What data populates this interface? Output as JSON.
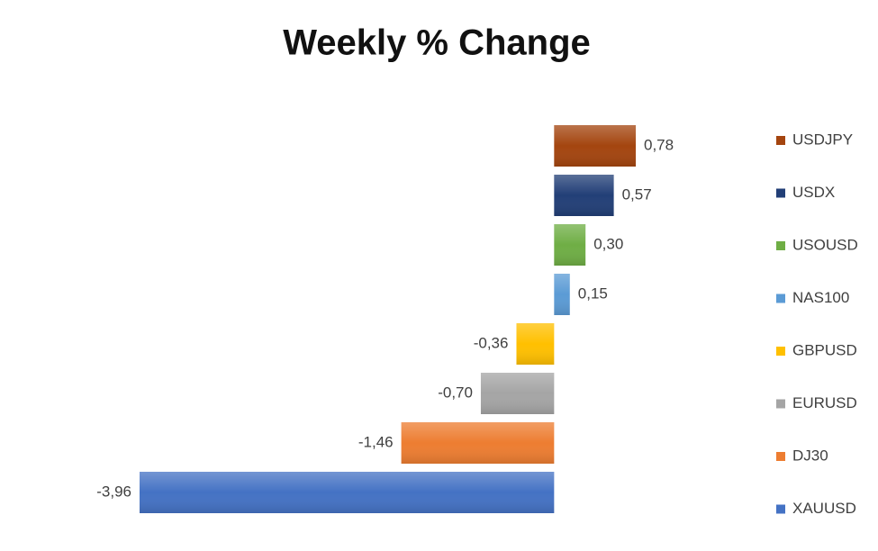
{
  "chart_data": {
    "type": "bar",
    "orientation": "horizontal",
    "title": "Weekly % Change",
    "series": [
      {
        "name": "USDJPY",
        "color": "#a4450f",
        "values": [
          0.78
        ],
        "value_labels": [
          "0,78"
        ]
      },
      {
        "name": "USDX",
        "color": "#223f77",
        "values": [
          0.57
        ],
        "value_labels": [
          "0,57"
        ]
      },
      {
        "name": "USOUSD",
        "color": "#6fae45",
        "values": [
          0.3
        ],
        "value_labels": [
          "0,30"
        ]
      },
      {
        "name": "NAS100",
        "color": "#5b9bd5",
        "values": [
          0.15
        ],
        "value_labels": [
          "0,15"
        ]
      },
      {
        "name": "GBPUSD",
        "color": "#ffc000",
        "values": [
          -0.36
        ],
        "value_labels": [
          "-0,36"
        ]
      },
      {
        "name": "EURUSD",
        "color": "#a5a5a5",
        "values": [
          -0.7
        ],
        "value_labels": [
          "-0,70"
        ]
      },
      {
        "name": "DJ30",
        "color": "#ed7d31",
        "values": [
          -1.46
        ],
        "value_labels": [
          "-1,46"
        ]
      },
      {
        "name": "XAUUSD",
        "color": "#4472c4",
        "values": [
          -3.96
        ],
        "value_labels": [
          "-3,96"
        ]
      }
    ],
    "legend": "right"
  }
}
